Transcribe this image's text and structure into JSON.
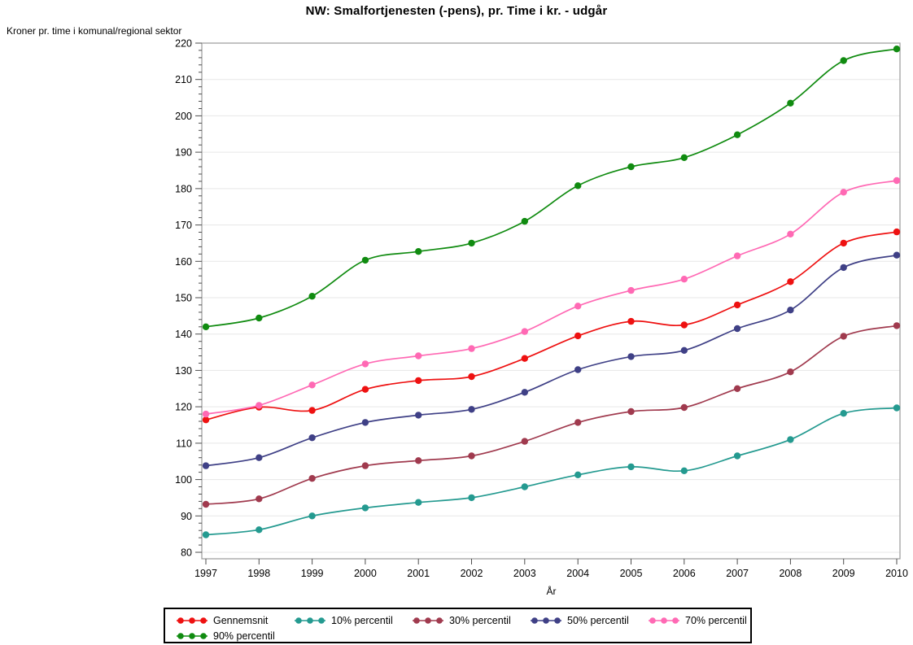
{
  "chart_data": {
    "type": "line",
    "title": "NW: Smalfortjenesten (-pens), pr. Time i kr. - udgår",
    "ylabel": "Kroner pr. time i komunal/regional sektor",
    "xlabel": "År",
    "x": [
      1997,
      1998,
      1999,
      2000,
      2001,
      2002,
      2003,
      2004,
      2005,
      2006,
      2007,
      2008,
      2009,
      2010
    ],
    "ylim": [
      80,
      220
    ],
    "yticks": [
      80,
      90,
      100,
      110,
      120,
      130,
      140,
      150,
      160,
      170,
      180,
      190,
      200,
      210,
      220
    ],
    "ytick_minor_step": 2,
    "grid": "horizontal major gridlines, light gray",
    "line_style": "smooth spline with filled circle markers",
    "legend_position": "bottom",
    "series": [
      {
        "name": "Gennemsnit",
        "color": "#ee1111",
        "values": [
          116.4,
          119.9,
          119.0,
          124.8,
          127.2,
          128.3,
          133.3,
          139.5,
          143.5,
          142.5,
          148.0,
          154.4,
          165.0,
          168.1
        ]
      },
      {
        "name": "10% percentil",
        "color": "#249a90",
        "values": [
          84.8,
          86.2,
          90.0,
          92.2,
          93.7,
          95.0,
          98.0,
          101.3,
          103.5,
          102.4,
          106.5,
          111.0,
          118.2,
          119.7
        ]
      },
      {
        "name": "30% percentil",
        "color": "#a03a4e",
        "values": [
          93.2,
          94.7,
          100.3,
          103.8,
          105.2,
          106.5,
          110.5,
          115.7,
          118.7,
          119.8,
          125.0,
          129.6,
          139.4,
          142.3
        ]
      },
      {
        "name": "50% percentil",
        "color": "#3f4086",
        "values": [
          103.8,
          106.0,
          111.5,
          115.7,
          117.7,
          119.3,
          124.0,
          130.2,
          133.8,
          135.5,
          141.5,
          146.6,
          158.3,
          161.7
        ]
      },
      {
        "name": "70% percentil",
        "color": "#ff69b4",
        "values": [
          118.0,
          120.4,
          126.0,
          131.8,
          134.0,
          136.0,
          140.7,
          147.7,
          152.0,
          155.1,
          161.5,
          167.5,
          179.0,
          182.2
        ]
      },
      {
        "name": "90% percentil",
        "color": "#108b10",
        "values": [
          142.0,
          144.4,
          150.4,
          160.3,
          162.7,
          165.0,
          171.0,
          180.8,
          186.0,
          188.5,
          194.8,
          203.5,
          215.2,
          218.4
        ]
      }
    ]
  },
  "style": {
    "grid_color": "#e7e7e7",
    "frame_color": "#9a9a9a",
    "tick_color": "#4d4d4d",
    "text_color": "#000000",
    "legend_border_color": "#000000",
    "background": "#ffffff"
  }
}
